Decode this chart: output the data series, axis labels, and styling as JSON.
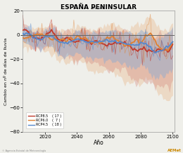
{
  "title": "ESPAÑA PENINSULAR",
  "subtitle": "ANUAL",
  "xlabel": "Año",
  "ylabel": "Cambio en nº de días de lluvia",
  "xlim": [
    2006,
    2101
  ],
  "ylim": [
    -80,
    20
  ],
  "yticks": [
    20,
    0,
    -20,
    -40,
    -60,
    -80
  ],
  "xticks": [
    2020,
    2040,
    2060,
    2080,
    2100
  ],
  "hline_y": 0,
  "rcp85_color": "#c0392b",
  "rcp60_color": "#e08030",
  "rcp45_color": "#5588cc",
  "rcp85_shade": "#d4857a",
  "rcp60_shade": "#e8b080",
  "rcp45_shade": "#88aad4",
  "legend_labels": [
    "RCP8.5",
    "RCP6.0",
    "RCP4.5"
  ],
  "legend_counts": [
    "( 17 )",
    "(  7 )",
    "( 18 )"
  ],
  "background_color": "#efefea",
  "seed": 42,
  "n_years": 95,
  "start_year": 2006
}
